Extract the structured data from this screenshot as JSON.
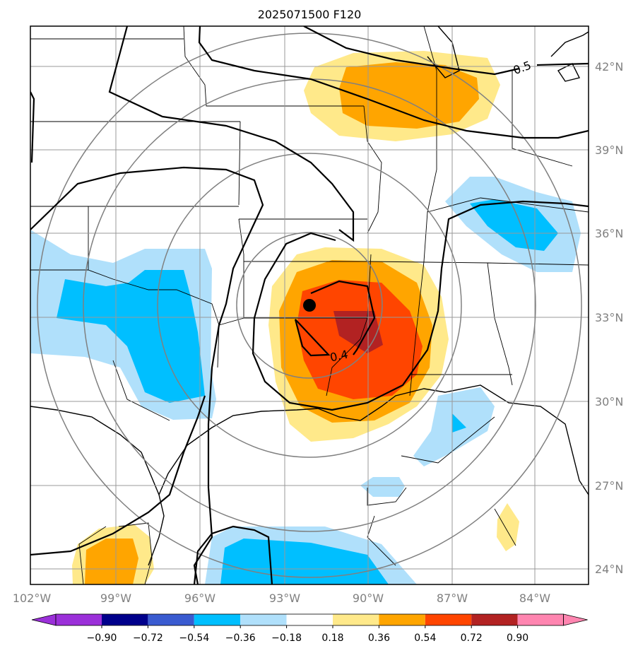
{
  "title": "2025071500 F120",
  "map": {
    "lon_range": [
      -102,
      -83
    ],
    "lat_range": [
      23.5,
      43.2
    ],
    "lon_ticks": [
      -102,
      -99,
      -96,
      -93,
      -90,
      -87,
      -84
    ],
    "lon_tick_labels": [
      "102°W",
      "99°W",
      "96°W",
      "93°W",
      "90°W",
      "87°W",
      "84°W"
    ],
    "lat_ticks": [
      24,
      27,
      30,
      33,
      36,
      39,
      42
    ],
    "lat_tick_labels": [
      "24°N",
      "27°N",
      "30°N",
      "33°N",
      "36°N",
      "39°N",
      "42°N"
    ],
    "gridlines": true,
    "center_point": {
      "lon": -92.3,
      "lat": 33.5
    },
    "range_rings": true
  },
  "contour_labels": [
    "0.5",
    "0.4"
  ],
  "colorbar": {
    "levels": [
      -0.9,
      -0.72,
      -0.54,
      -0.36,
      -0.18,
      0.18,
      0.36,
      0.54,
      0.72,
      0.9
    ],
    "labels": [
      "−0.90",
      "−0.72",
      "−0.54",
      "−0.36",
      "−0.18",
      "0.18",
      "0.36",
      "0.54",
      "0.72",
      "0.90"
    ],
    "colors": [
      "#9b30d9",
      "#00008b",
      "#3a5bd0",
      "#00bfff",
      "#b0e0fb",
      "#ffffff",
      "#ffe98a",
      "#ffa500",
      "#ff4500",
      "#b22222",
      "#ff85b0"
    ],
    "extend": "both"
  }
}
